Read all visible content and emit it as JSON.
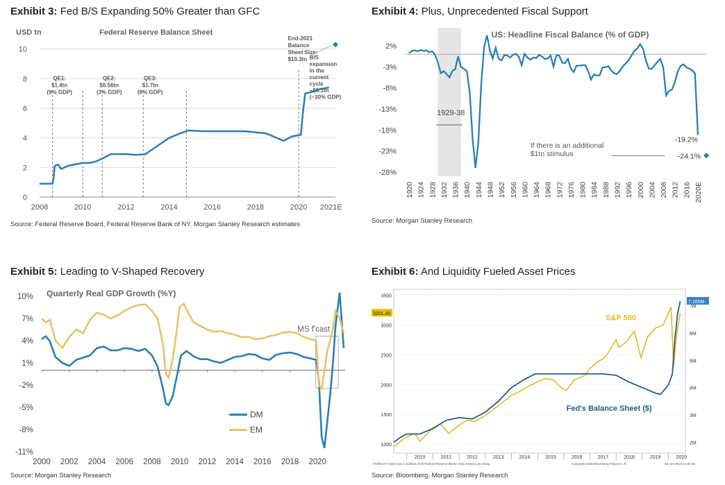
{
  "exhibits": [
    {
      "label": "Exhibit 3:",
      "title": "Fed B/S Expanding 50% Greater than GFC",
      "source": "Source: Federal Reserve Board, Federal Reserve Bank of NY. Morgan Stanley Research estimates"
    },
    {
      "label": "Exhibit 4:",
      "title": "Plus, Unprecedented Fiscal Support",
      "source": "Source: Morgan Stanley Research"
    },
    {
      "label": "Exhibit 5:",
      "title": "Leading to V-Shaped Recovery",
      "source": "Source: Morgan Stanley Research"
    },
    {
      "label": "Exhibit 6:",
      "title": "And Liquidity Fueled Asset Prices",
      "source": "Source: Bloomberg, Morgan Stanley Research"
    }
  ],
  "colors": {
    "blue": "#2a7fb3",
    "gold": "#e6c36a",
    "sp_gold": "#e3b82a",
    "shade": "#e6e6e6",
    "grid": "#cccccc",
    "diamond": "#1f7ea8"
  },
  "chart_data": [
    {
      "type": "line",
      "title": "Federal Reserve Balance Sheet",
      "ylabel": "USD tn",
      "xlim": [
        2008,
        2021.7
      ],
      "ylim": [
        0,
        10.5
      ],
      "x_ticks": [
        "2008",
        "2010",
        "2012",
        "2014",
        "2016",
        "2018",
        "2020",
        "2021E"
      ],
      "y_ticks": [
        "0",
        "2",
        "4",
        "6",
        "8",
        "10"
      ],
      "series": [
        {
          "x": [
            2008.0,
            2008.6,
            2008.65,
            2008.7,
            2008.85,
            2009.0,
            2009.3,
            2009.6,
            2010.0,
            2010.3,
            2010.6,
            2010.9,
            2011.3,
            2011.6,
            2012.0,
            2012.5,
            2012.9,
            2013.3,
            2013.7,
            2014.0,
            2014.5,
            2014.9,
            2015.5,
            2016.5,
            2017.5,
            2018.5,
            2019.3,
            2019.7,
            2020.1,
            2020.2,
            2020.3,
            2020.6,
            2021.0,
            2021.4
          ],
          "y": [
            0.9,
            0.9,
            1.3,
            2.1,
            2.2,
            1.9,
            2.1,
            2.2,
            2.3,
            2.3,
            2.4,
            2.6,
            2.9,
            2.9,
            2.9,
            2.85,
            2.9,
            3.3,
            3.7,
            4.0,
            4.3,
            4.5,
            4.45,
            4.45,
            4.45,
            4.3,
            3.8,
            4.1,
            4.2,
            5.8,
            7.0,
            7.1,
            7.3,
            7.4
          ]
        }
      ],
      "end_point": {
        "x": 2021.7,
        "y": 10.3
      },
      "annotations": [
        {
          "x": 2008.6,
          "text": [
            "QE1:",
            "$1.4tn",
            "(9% GDP)"
          ]
        },
        {
          "x": 2010.0,
          "text": []
        },
        {
          "x": 2010.9,
          "text": [
            "QE2:",
            "$0.56tn",
            "(3% GDP)"
          ]
        },
        {
          "x": 2012.8,
          "text": [
            "QE3:",
            "$1.7tn",
            "(8% GDP)"
          ]
        },
        {
          "x": 2014.8,
          "text": []
        },
        {
          "x": 2020.0,
          "text": []
        }
      ],
      "callout_end": [
        "End-2021",
        "Balance",
        "Sheet Size:",
        "$10.3tn"
      ],
      "callout_bs": [
        "B/S",
        "expansion",
        "in the",
        "current",
        "cycle",
        "~$6.1tn",
        "(~30% GDP)"
      ]
    },
    {
      "type": "line",
      "title": "US: Headline Fiscal Balance (% of GDP)",
      "ylim": [
        -29,
        3
      ],
      "y_ticks": [
        "2%",
        "-3%",
        "-8%",
        "-13%",
        "-18%",
        "-23%",
        "-28%"
      ],
      "x_ticks": [
        "1920",
        "1924",
        "1928",
        "1932",
        "1936",
        "1940",
        "1944",
        "1948",
        "1952",
        "1956",
        "1960",
        "1964",
        "1968",
        "1972",
        "1976",
        "1980",
        "1984",
        "1988",
        "1992",
        "1996",
        "2000",
        "2004",
        "2008",
        "2012",
        "2016",
        "2020E"
      ],
      "shade": {
        "from": 1930,
        "to": 1938,
        "label": "1929-38"
      },
      "series": [
        {
          "values": [
            0.3,
            0.8,
            0.9,
            0.7,
            1.0,
            0.8,
            0.9,
            0.5,
            0.7,
            -0.1,
            -2.0,
            -4.5,
            -4.0,
            -4.7,
            -5.5,
            -4.0,
            -3.5,
            -0.5,
            -3.0,
            -3.5,
            -4.0,
            -9.0,
            -20.0,
            -27.0,
            -21.0,
            -7.0,
            1.8,
            4.5,
            0.8,
            -1.0,
            1.5,
            -1.0,
            -1.5,
            -0.2,
            -0.3,
            -0.8,
            -0.1,
            0.1,
            -0.6,
            -2.6,
            0.1,
            -0.8,
            -1.3,
            -0.8,
            -0.9,
            -0.2,
            -0.5,
            -1.1,
            -1.0,
            -0.3,
            -2.9,
            -0.3,
            -0.3,
            -2.0,
            -2.1,
            -1.1,
            -3.4,
            -4.2,
            -2.7,
            -2.7,
            -2.6,
            -2.6,
            -4.0,
            -6.0,
            -4.8,
            -5.1,
            -5.0,
            -3.1,
            -3.1,
            -2.8,
            -3.9,
            -4.5,
            -4.7,
            -3.9,
            -2.9,
            -2.2,
            -1.4,
            -0.3,
            0.8,
            1.4,
            2.4,
            1.3,
            -1.5,
            -3.4,
            -3.5,
            -2.6,
            -1.8,
            -1.1,
            -3.1,
            -9.8,
            -8.7,
            -8.4,
            -6.7,
            -4.1,
            -2.8,
            -2.4,
            -3.1,
            -3.4,
            -3.8,
            -4.6,
            -19.2
          ]
        }
      ],
      "x_start": 1920,
      "last_label": "-19.2%",
      "stimulus_point": {
        "x": 2021,
        "y": -24.1
      },
      "stimulus_label": "-24.1%",
      "stimulus_note": [
        "If there is an additional",
        "$1tn stimulus"
      ]
    },
    {
      "type": "line",
      "title": "Quarterly Real GDP Growth (%Y)",
      "ylim": [
        -11,
        10
      ],
      "y_ticks": [
        "10%",
        "7%",
        "4%",
        "1%",
        "-2%",
        "-5%",
        "-8%",
        "-11%"
      ],
      "x_ticks": [
        "2000",
        "2002",
        "2004",
        "2006",
        "2008",
        "2010",
        "2012",
        "2014",
        "2016",
        "2018",
        "2020"
      ],
      "xlim": [
        2000,
        2022
      ],
      "forecast_label": "MS f'cast",
      "forecast_from": 2019.85,
      "series": [
        {
          "name": "DM",
          "x": [
            2000.0,
            2000.3,
            2000.6,
            2001.0,
            2001.5,
            2002.0,
            2002.5,
            2003.0,
            2003.5,
            2004.0,
            2004.5,
            2005.0,
            2005.5,
            2006.0,
            2006.5,
            2007.0,
            2007.5,
            2008.0,
            2008.4,
            2008.8,
            2009.0,
            2009.2,
            2009.5,
            2009.8,
            2010.1,
            2010.5,
            2011.0,
            2011.5,
            2012.0,
            2012.5,
            2013.0,
            2013.5,
            2014.0,
            2014.5,
            2015.0,
            2015.5,
            2016.0,
            2016.5,
            2017.0,
            2017.5,
            2018.0,
            2018.5,
            2019.0,
            2019.5,
            2019.9,
            2020.1,
            2020.3,
            2020.5,
            2020.7,
            2020.9,
            2021.1,
            2021.3,
            2021.6,
            2021.9
          ],
          "y": [
            4.2,
            4.6,
            3.9,
            1.8,
            1.0,
            0.6,
            1.4,
            1.7,
            2.0,
            3.0,
            3.2,
            2.7,
            2.7,
            3.0,
            2.9,
            2.6,
            2.9,
            2.0,
            0.5,
            -2.5,
            -4.5,
            -4.7,
            -3.5,
            -0.8,
            2.0,
            2.6,
            1.9,
            1.5,
            1.5,
            1.2,
            1.0,
            1.4,
            1.8,
            1.9,
            2.2,
            2.1,
            1.6,
            1.4,
            2.1,
            2.3,
            2.4,
            2.2,
            1.8,
            1.6,
            1.4,
            -1.5,
            -9.0,
            -10.5,
            -7.0,
            -3.5,
            0.5,
            6.0,
            10.5,
            3.0
          ]
        },
        {
          "name": "EM",
          "x": [
            2000.0,
            2000.3,
            2000.6,
            2001.0,
            2001.5,
            2002.0,
            2002.5,
            2003.0,
            2003.5,
            2004.0,
            2004.5,
            2005.0,
            2005.5,
            2006.0,
            2006.5,
            2007.0,
            2007.5,
            2008.0,
            2008.4,
            2008.8,
            2009.0,
            2009.2,
            2009.5,
            2009.8,
            2010.0,
            2010.3,
            2010.7,
            2011.0,
            2011.5,
            2012.0,
            2012.5,
            2013.0,
            2013.5,
            2014.0,
            2014.5,
            2015.0,
            2015.5,
            2016.0,
            2016.5,
            2017.0,
            2017.5,
            2018.0,
            2018.5,
            2019.0,
            2019.5,
            2019.9,
            2020.1,
            2020.3,
            2020.5,
            2020.7,
            2020.9,
            2021.1,
            2021.3,
            2021.6,
            2021.9
          ],
          "y": [
            7.0,
            6.5,
            6.8,
            4.0,
            3.0,
            4.5,
            5.5,
            5.0,
            6.8,
            7.8,
            7.5,
            7.0,
            7.4,
            8.0,
            8.5,
            8.8,
            8.9,
            8.0,
            7.0,
            3.5,
            -0.5,
            -1.0,
            1.5,
            5.5,
            8.5,
            9.0,
            7.5,
            6.5,
            6.0,
            5.5,
            5.2,
            5.3,
            5.0,
            4.8,
            4.5,
            4.5,
            4.2,
            4.3,
            4.6,
            4.8,
            5.1,
            5.2,
            5.0,
            4.5,
            4.2,
            4.0,
            -2.0,
            -2.5,
            0.0,
            2.5,
            4.0,
            5.5,
            8.0,
            7.0,
            5.0
          ]
        }
      ],
      "legend": [
        "DM",
        "EM"
      ]
    },
    {
      "type": "line",
      "left_axis_ticks": [
        "1000",
        "1500",
        "2000",
        "2500",
        "3000",
        "3500"
      ],
      "right_axis_ticks": [
        "2M",
        "3M",
        "4M",
        "5M",
        "6M",
        "7M"
      ],
      "x_ticks": [
        "2010",
        "2011",
        "2012",
        "2013",
        "2014",
        "2015",
        "2016",
        "2017",
        "2018",
        "2019",
        "2020"
      ],
      "left_tag": "3201.40",
      "right_tag": "7.165M",
      "footer_left": "PARBAST Index (US Condition of All Federal Reserve Banks Total Assets) y/y chang",
      "footer_right": "Copyright 2020 Bloomberg Finance L.P.",
      "footer_date": "10-Jun-2020 10:04:35",
      "series": [
        {
          "name": "S&P 500",
          "axis": "left",
          "x": [
            2009.5,
            2009.8,
            2010.0,
            2010.3,
            2010.5,
            2010.8,
            2011.0,
            2011.3,
            2011.6,
            2011.8,
            2012.0,
            2012.3,
            2012.6,
            2013.0,
            2013.3,
            2013.6,
            2014.0,
            2014.3,
            2014.6,
            2015.0,
            2015.3,
            2015.6,
            2015.9,
            2016.1,
            2016.4,
            2016.8,
            2017.0,
            2017.3,
            2017.6,
            2018.0,
            2018.1,
            2018.4,
            2018.7,
            2018.95,
            2019.2,
            2019.5,
            2019.8,
            2020.1,
            2020.2,
            2020.3,
            2020.45
          ],
          "y": [
            950,
            1060,
            1120,
            1180,
            1050,
            1180,
            1280,
            1340,
            1180,
            1250,
            1320,
            1400,
            1380,
            1480,
            1580,
            1680,
            1820,
            1880,
            1960,
            2050,
            2100,
            2080,
            1950,
            1900,
            2080,
            2150,
            2270,
            2380,
            2470,
            2750,
            2620,
            2720,
            2900,
            2450,
            2800,
            2950,
            3000,
            3300,
            2300,
            2800,
            3200
          ]
        },
        {
          "name": "Fed's Balance Sheet ($)",
          "axis": "right",
          "x": [
            2009.5,
            2009.8,
            2010.0,
            2010.5,
            2011.0,
            2011.5,
            2012.0,
            2012.5,
            2013.0,
            2013.5,
            2014.0,
            2014.5,
            2014.9,
            2015.5,
            2016.5,
            2017.5,
            2018.0,
            2018.5,
            2019.0,
            2019.5,
            2019.7,
            2020.0,
            2020.15,
            2020.25,
            2020.35,
            2020.45
          ],
          "y": [
            2.0,
            2.2,
            2.3,
            2.3,
            2.5,
            2.8,
            2.9,
            2.85,
            3.1,
            3.5,
            4.0,
            4.3,
            4.5,
            4.5,
            4.5,
            4.5,
            4.45,
            4.2,
            4.0,
            3.8,
            3.75,
            4.1,
            4.5,
            5.8,
            6.7,
            7.165
          ]
        }
      ]
    }
  ]
}
